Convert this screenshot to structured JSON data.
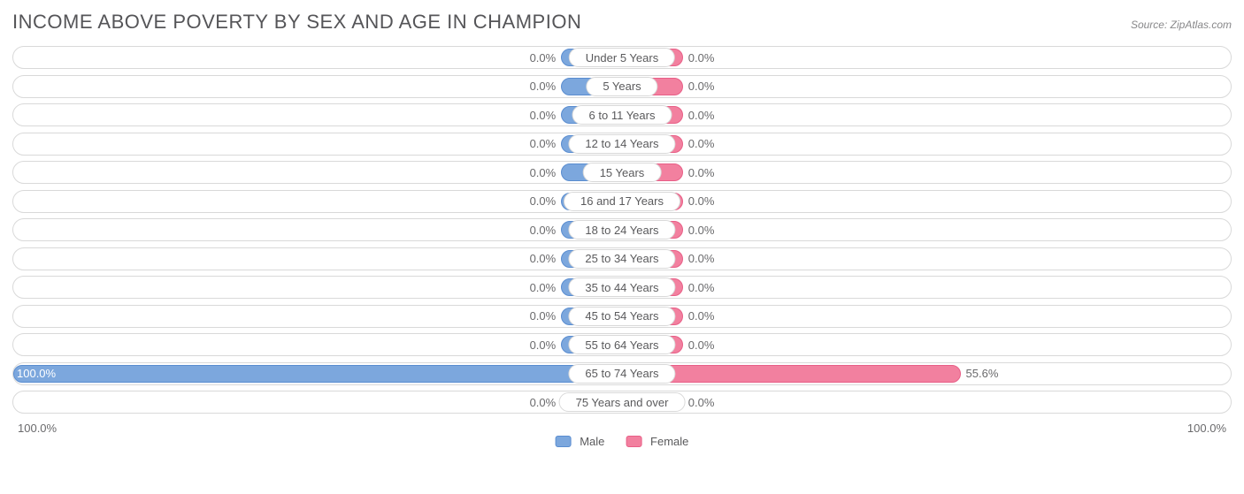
{
  "title": "INCOME ABOVE POVERTY BY SEX AND AGE IN CHAMPION",
  "source": "Source: ZipAtlas.com",
  "axis": {
    "left": "100.0%",
    "right": "100.0%",
    "max": 100.0
  },
  "legend": {
    "male": {
      "label": "Male",
      "color": "#7ca7dd",
      "border": "#5a8dd0"
    },
    "female": {
      "label": "Female",
      "color": "#f2809f",
      "border": "#e85f87"
    }
  },
  "style": {
    "min_bar_pct": 10.0,
    "track_border": "#d9d9d9",
    "text_color": "#6a6a6c"
  },
  "rows": [
    {
      "category": "Under 5 Years",
      "male": 0.0,
      "female": 0.0,
      "male_label": "0.0%",
      "female_label": "0.0%"
    },
    {
      "category": "5 Years",
      "male": 0.0,
      "female": 0.0,
      "male_label": "0.0%",
      "female_label": "0.0%"
    },
    {
      "category": "6 to 11 Years",
      "male": 0.0,
      "female": 0.0,
      "male_label": "0.0%",
      "female_label": "0.0%"
    },
    {
      "category": "12 to 14 Years",
      "male": 0.0,
      "female": 0.0,
      "male_label": "0.0%",
      "female_label": "0.0%"
    },
    {
      "category": "15 Years",
      "male": 0.0,
      "female": 0.0,
      "male_label": "0.0%",
      "female_label": "0.0%"
    },
    {
      "category": "16 and 17 Years",
      "male": 0.0,
      "female": 0.0,
      "male_label": "0.0%",
      "female_label": "0.0%"
    },
    {
      "category": "18 to 24 Years",
      "male": 0.0,
      "female": 0.0,
      "male_label": "0.0%",
      "female_label": "0.0%"
    },
    {
      "category": "25 to 34 Years",
      "male": 0.0,
      "female": 0.0,
      "male_label": "0.0%",
      "female_label": "0.0%"
    },
    {
      "category": "35 to 44 Years",
      "male": 0.0,
      "female": 0.0,
      "male_label": "0.0%",
      "female_label": "0.0%"
    },
    {
      "category": "45 to 54 Years",
      "male": 0.0,
      "female": 0.0,
      "male_label": "0.0%",
      "female_label": "0.0%"
    },
    {
      "category": "55 to 64 Years",
      "male": 0.0,
      "female": 0.0,
      "male_label": "0.0%",
      "female_label": "0.0%"
    },
    {
      "category": "65 to 74 Years",
      "male": 100.0,
      "female": 55.6,
      "male_label": "100.0%",
      "female_label": "55.6%"
    },
    {
      "category": "75 Years and over",
      "male": 0.0,
      "female": 0.0,
      "male_label": "0.0%",
      "female_label": "0.0%"
    }
  ]
}
